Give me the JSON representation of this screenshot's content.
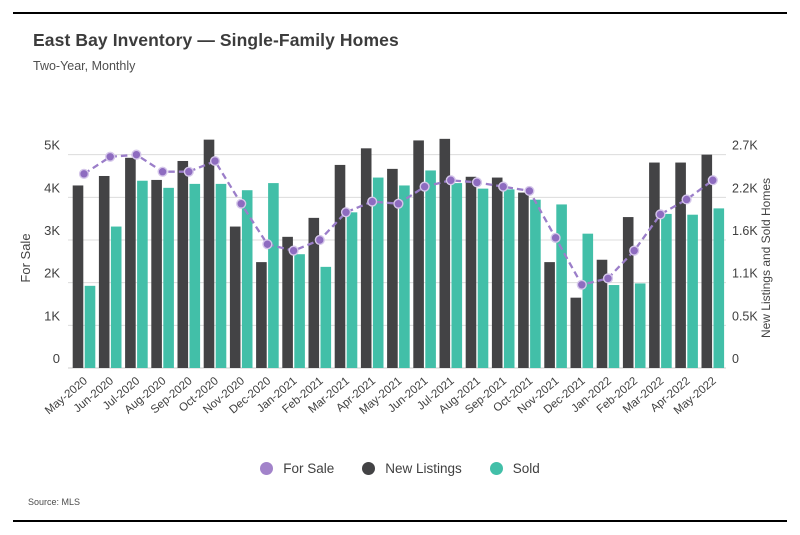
{
  "page": {
    "title": "East Bay Inventory — Single-Family Homes",
    "subtitle": "Two-Year, Monthly",
    "source": "Source: MLS"
  },
  "chart_data": {
    "type": "combo-bar-line",
    "title": "East Bay Inventory — Single-Family Homes",
    "subtitle": "Two-Year, Monthly",
    "categories": [
      "May-2020",
      "Jun-2020",
      "Jul-2020",
      "Aug-2020",
      "Sep-2020",
      "Oct-2020",
      "Nov-2020",
      "Dec-2020",
      "Jan-2021",
      "Feb-2021",
      "Mar-2021",
      "Apr-2021",
      "May-2021",
      "Jun-2021",
      "Jul-2021",
      "Aug-2021",
      "Sep-2021",
      "Oct-2021",
      "Nov-2021",
      "Dec-2021",
      "Jan-2022",
      "Feb-2022",
      "Mar-2022",
      "Apr-2022",
      "May-2022"
    ],
    "series": [
      {
        "name": "For Sale",
        "type": "line",
        "axis": "left",
        "style": "dashed-with-markers",
        "color": "#9b7ec9",
        "marker_fill": "#8e6cc0",
        "marker_edge": "#d5c7ea",
        "values": [
          4550,
          4950,
          5000,
          4600,
          4600,
          4850,
          3850,
          2900,
          2750,
          3000,
          3650,
          3900,
          3850,
          4250,
          4400,
          4350,
          4250,
          4150,
          3050,
          1950,
          2100,
          2750,
          3600,
          3950,
          4400
        ]
      },
      {
        "name": "New Listings",
        "type": "bar",
        "axis": "right",
        "color": "#434345",
        "values": [
          2310,
          2430,
          2660,
          2380,
          2620,
          2890,
          1790,
          1340,
          1660,
          1900,
          2570,
          2780,
          2520,
          2880,
          2900,
          2420,
          2410,
          2220,
          1340,
          890,
          1370,
          1910,
          2600,
          2600,
          2700
        ]
      },
      {
        "name": "Sold",
        "type": "bar",
        "axis": "right",
        "color": "#42bfa8",
        "values": [
          1040,
          1790,
          2370,
          2280,
          2330,
          2330,
          2250,
          2340,
          1440,
          1280,
          1970,
          2410,
          2310,
          2500,
          2340,
          2270,
          2260,
          2130,
          2070,
          1700,
          1050,
          1070,
          1950,
          1940,
          2020
        ]
      }
    ],
    "left_axis": {
      "label": "For Sale",
      "tick_values": [
        0,
        1000,
        2000,
        3000,
        4000,
        5000
      ],
      "tick_labels": [
        "0",
        "1K",
        "2K",
        "3K",
        "4K",
        "5K"
      ],
      "max": 5000
    },
    "right_axis": {
      "label": "New Listings and Sold Homes",
      "tick_values": [
        0,
        540,
        1080,
        1620,
        2160,
        2700
      ],
      "tick_labels": [
        "0",
        "0.5K",
        "1.1K",
        "1.6K",
        "2.2K",
        "2.7K"
      ],
      "max": 2700
    },
    "legend": [
      "For Sale",
      "New Listings",
      "Sold"
    ],
    "grid": "horizontal",
    "gridline_color": "#dcdcdc",
    "text_color": "#3f3f3f"
  }
}
